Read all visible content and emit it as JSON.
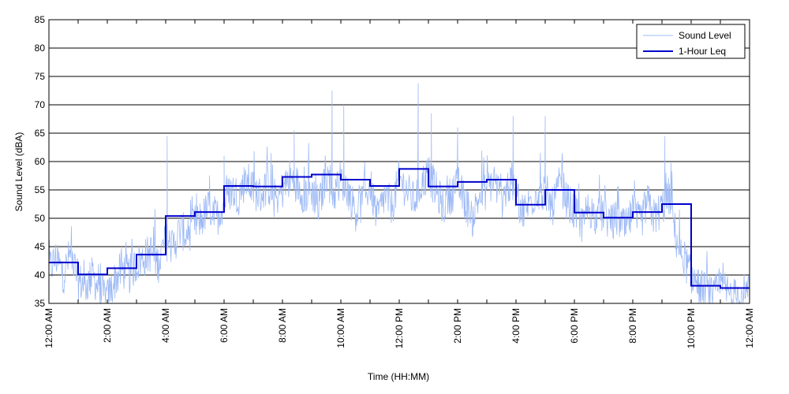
{
  "chart_data": {
    "type": "line",
    "xlabel": "Time (HH:MM)",
    "ylabel": "Sound Level (dBA)",
    "ylim": [
      35,
      85
    ],
    "yticks": [
      35,
      40,
      45,
      50,
      55,
      60,
      65,
      70,
      75,
      80,
      85
    ],
    "xlim_hours": [
      0,
      24
    ],
    "x_tick_hours": [
      0,
      2,
      4,
      6,
      8,
      10,
      12,
      14,
      16,
      18,
      20,
      22,
      24
    ],
    "x_tick_labels": [
      "12:00 AM",
      "2:00 AM",
      "4:00 AM",
      "6:00 AM",
      "8:00 AM",
      "10:00 AM",
      "12:00 PM",
      "2:00 PM",
      "4:00 PM",
      "6:00 PM",
      "8:00 PM",
      "10:00 PM",
      "12:00 AM"
    ],
    "grid": "horizontal",
    "legend_position": "top-right",
    "series": [
      {
        "name": "Sound Level",
        "style": "thin-line",
        "color": "#9db9f5",
        "x_hours": [
          0,
          0.25,
          0.5,
          0.75,
          1,
          1.25,
          1.5,
          1.75,
          2,
          2.25,
          2.5,
          2.75,
          3,
          3.25,
          3.5,
          3.75,
          4,
          4.25,
          4.5,
          4.75,
          5,
          5.25,
          5.5,
          5.75,
          6,
          6.25,
          6.5,
          6.75,
          7,
          7.25,
          7.5,
          7.75,
          8,
          8.25,
          8.5,
          8.75,
          9,
          9.25,
          9.5,
          9.75,
          10,
          10.25,
          10.5,
          10.75,
          11,
          11.25,
          11.5,
          11.75,
          12,
          12.25,
          12.5,
          12.75,
          13,
          13.25,
          13.5,
          13.75,
          14,
          14.25,
          14.5,
          14.75,
          15,
          15.25,
          15.5,
          15.75,
          16,
          16.25,
          16.5,
          16.75,
          17,
          17.25,
          17.5,
          17.75,
          18,
          18.25,
          18.5,
          18.75,
          19,
          19.25,
          19.5,
          19.75,
          20,
          20.25,
          20.5,
          20.75,
          21,
          21.25,
          21.5,
          21.75,
          22,
          22.25,
          22.5,
          22.75,
          23,
          23.25,
          23.5,
          23.75,
          24
        ],
        "values": [
          41,
          43,
          40,
          44,
          39,
          38,
          40,
          37,
          36,
          39,
          41,
          40,
          42,
          43,
          44,
          42,
          46,
          45,
          48,
          47,
          49,
          50,
          52,
          50,
          53,
          55,
          54,
          57,
          55,
          54,
          56,
          53,
          55,
          57,
          56,
          54,
          55,
          52,
          58,
          54,
          57,
          55,
          51,
          53,
          56,
          50,
          54,
          52,
          57,
          55,
          53,
          56,
          58,
          55,
          52,
          54,
          56,
          53,
          50,
          54,
          55,
          57,
          53,
          56,
          54,
          51,
          53,
          55,
          54,
          52,
          56,
          53,
          51,
          49,
          52,
          50,
          51,
          49,
          50,
          48,
          51,
          49,
          53,
          50,
          52,
          54,
          46,
          43,
          40,
          38,
          37,
          36,
          38,
          37,
          36,
          37,
          36
        ],
        "spikes": [
          {
            "x_hour": 4.05,
            "value": 64.5
          },
          {
            "x_hour": 6.0,
            "value": 61
          },
          {
            "x_hour": 8.4,
            "value": 65.5
          },
          {
            "x_hour": 9.7,
            "value": 72.5
          },
          {
            "x_hour": 10.1,
            "value": 70
          },
          {
            "x_hour": 12.65,
            "value": 73.8
          },
          {
            "x_hour": 13.1,
            "value": 68.5
          },
          {
            "x_hour": 14.0,
            "value": 66
          },
          {
            "x_hour": 15.9,
            "value": 68
          },
          {
            "x_hour": 17.0,
            "value": 68
          },
          {
            "x_hour": 21.1,
            "value": 64.5
          }
        ]
      },
      {
        "name": "1-Hour Leq",
        "style": "step",
        "color": "#0000cc",
        "hour_start": [
          0,
          1,
          2,
          3,
          4,
          5,
          6,
          7,
          8,
          9,
          10,
          11,
          12,
          13,
          14,
          15,
          16,
          17,
          18,
          19,
          20,
          21,
          22,
          23
        ],
        "values": [
          42.2,
          40.1,
          41.2,
          43.6,
          50.4,
          51.1,
          55.7,
          55.6,
          57.3,
          57.7,
          56.8,
          55.7,
          58.7,
          55.6,
          56.4,
          56.8,
          52.4,
          55.0,
          51.0,
          50.1,
          51.1,
          52.5,
          38.1,
          37.7
        ]
      }
    ]
  }
}
